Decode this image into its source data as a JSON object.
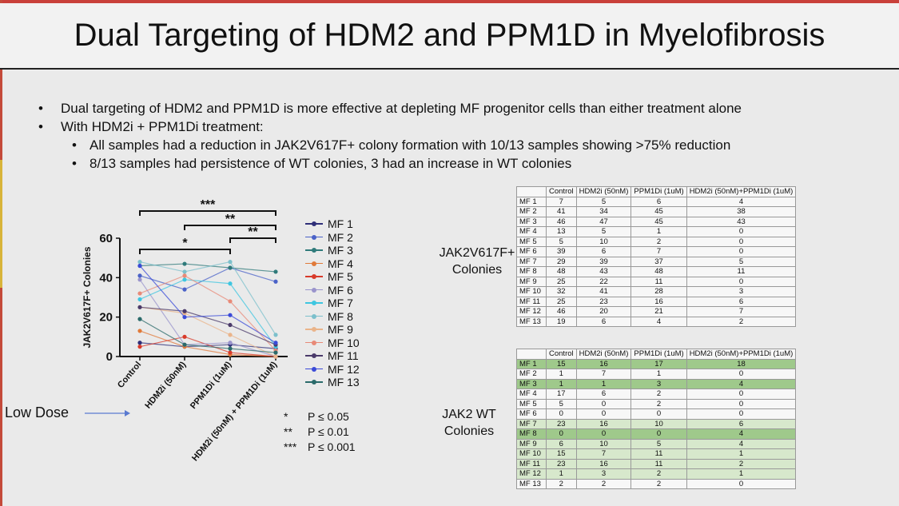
{
  "title": "Dual Targeting of HDM2 and PPM1D in Myelofibrosis",
  "bullets": [
    {
      "level": 1,
      "text": "Dual targeting of HDM2 and PPM1D is more effective at depleting MF progenitor cells than either treatment alone"
    },
    {
      "level": 1,
      "text": "With HDM2i + PPM1Di treatment:"
    },
    {
      "level": 2,
      "text": "All samples had a reduction in JAK2V617F+ colony formation with 10/13 samples showing >75% reduction"
    },
    {
      "level": 2,
      "text": "8/13 samples had persistence of WT colonies, 3 had an increase in WT colonies"
    }
  ],
  "annotations": {
    "low_dose": "Low Dose",
    "p_values": [
      {
        "symbol": "*",
        "text": "P ≤ 0.05"
      },
      {
        "symbol": "**",
        "text": "P ≤ 0.01"
      },
      {
        "symbol": "***",
        "text": "P ≤ 0.001"
      }
    ],
    "significance": [
      {
        "label": "***",
        "from": 0,
        "to": 3
      },
      {
        "label": "**",
        "from": 1,
        "to": 3
      },
      {
        "label": "**",
        "from": 2,
        "to": 3
      },
      {
        "label": "*",
        "from": 0,
        "to": 2
      }
    ]
  },
  "chart_data": [
    {
      "type": "line",
      "ylabel": "JAK2V617F+ Colonies",
      "ylim": [
        0,
        60
      ],
      "yticks": [
        0,
        20,
        40,
        60
      ],
      "categories": [
        "Control",
        "HDM2i (50nM)",
        "PPM1Di (1uM)",
        "HDM2i (50nM) + PPM1Di (1uM)"
      ],
      "legend_position": "right",
      "series": [
        {
          "name": "MF 1",
          "color": "#2f2f78",
          "values": [
            7,
            5,
            6,
            4
          ]
        },
        {
          "name": "MF 2",
          "color": "#4a62c8",
          "values": [
            41,
            34,
            45,
            38
          ]
        },
        {
          "name": "MF 3",
          "color": "#2f7a7a",
          "values": [
            46,
            47,
            45,
            43
          ]
        },
        {
          "name": "MF 4",
          "color": "#e07a3a",
          "values": [
            13,
            5,
            1,
            0
          ]
        },
        {
          "name": "MF 5",
          "color": "#d83a2a",
          "values": [
            5,
            10,
            2,
            0
          ]
        },
        {
          "name": "MF 6",
          "color": "#9a94cc",
          "values": [
            39,
            6,
            7,
            0
          ]
        },
        {
          "name": "MF 7",
          "color": "#3ec6e0",
          "values": [
            29,
            39,
            37,
            5
          ]
        },
        {
          "name": "MF 8",
          "color": "#7cc0cc",
          "values": [
            48,
            43,
            48,
            11
          ]
        },
        {
          "name": "MF 9",
          "color": "#eab48a",
          "values": [
            25,
            22,
            11,
            0
          ]
        },
        {
          "name": "MF 10",
          "color": "#e88a78",
          "values": [
            32,
            41,
            28,
            3
          ]
        },
        {
          "name": "MF 11",
          "color": "#4a3a6a",
          "values": [
            25,
            23,
            16,
            6
          ]
        },
        {
          "name": "MF 12",
          "color": "#3a4ad8",
          "values": [
            46,
            20,
            21,
            7
          ]
        },
        {
          "name": "MF 13",
          "color": "#2a6a6a",
          "values": [
            19,
            6,
            4,
            2
          ]
        }
      ]
    },
    {
      "type": "table",
      "label": "JAK2V617F+ Colonies",
      "columns": [
        "",
        "Control",
        "HDM2i (50nM)",
        "PPM1Di (1uM)",
        "HDM2i (50nM)+PPM1Di (1uM)"
      ],
      "rows": [
        [
          "MF 1",
          "7",
          "5",
          "6",
          "4"
        ],
        [
          "MF 2",
          "41",
          "34",
          "45",
          "38"
        ],
        [
          "MF 3",
          "46",
          "47",
          "45",
          "43"
        ],
        [
          "MF 4",
          "13",
          "5",
          "1",
          "0"
        ],
        [
          "MF 5",
          "5",
          "10",
          "2",
          "0"
        ],
        [
          "MF 6",
          "39",
          "6",
          "7",
          "0"
        ],
        [
          "MF 7",
          "29",
          "39",
          "37",
          "5"
        ],
        [
          "MF 8",
          "48",
          "43",
          "48",
          "11"
        ],
        [
          "MF 9",
          "25",
          "22",
          "11",
          "0"
        ],
        [
          "MF 10",
          "32",
          "41",
          "28",
          "3"
        ],
        [
          "MF 11",
          "25",
          "23",
          "16",
          "6"
        ],
        [
          "MF 12",
          "46",
          "20",
          "21",
          "7"
        ],
        [
          "MF 13",
          "19",
          "6",
          "4",
          "2"
        ]
      ]
    },
    {
      "type": "table",
      "label": "JAK2 WT Colonies",
      "columns": [
        "",
        "Control",
        "HDM2i (50nM)",
        "PPM1Di (1uM)",
        "HDM2i (50nM)+PPM1Di (1uM)"
      ],
      "highlight_colors": {
        "increase": "#9fc98b",
        "persistence": "#d7e8cc"
      },
      "rows": [
        {
          "cells": [
            "MF 1",
            "15",
            "16",
            "17",
            "18"
          ],
          "highlight": "increase"
        },
        {
          "cells": [
            "MF 2",
            "1",
            "7",
            "1",
            "0"
          ],
          "highlight": "none"
        },
        {
          "cells": [
            "MF 3",
            "1",
            "1",
            "3",
            "4"
          ],
          "highlight": "increase"
        },
        {
          "cells": [
            "MF 4",
            "17",
            "6",
            "2",
            "0"
          ],
          "highlight": "none"
        },
        {
          "cells": [
            "MF 5",
            "5",
            "0",
            "2",
            "0"
          ],
          "highlight": "none"
        },
        {
          "cells": [
            "MF 6",
            "0",
            "0",
            "0",
            "0"
          ],
          "highlight": "none"
        },
        {
          "cells": [
            "MF 7",
            "23",
            "16",
            "10",
            "6"
          ],
          "highlight": "persistence"
        },
        {
          "cells": [
            "MF 8",
            "0",
            "0",
            "0",
            "4"
          ],
          "highlight": "increase"
        },
        {
          "cells": [
            "MF 9",
            "6",
            "10",
            "5",
            "4"
          ],
          "highlight": "persistence"
        },
        {
          "cells": [
            "MF 10",
            "15",
            "7",
            "11",
            "1"
          ],
          "highlight": "persistence"
        },
        {
          "cells": [
            "MF 11",
            "23",
            "16",
            "11",
            "2"
          ],
          "highlight": "persistence"
        },
        {
          "cells": [
            "MF 12",
            "1",
            "3",
            "2",
            "1"
          ],
          "highlight": "persistence"
        },
        {
          "cells": [
            "MF 13",
            "2",
            "2",
            "2",
            "0"
          ],
          "highlight": "none"
        }
      ]
    }
  ]
}
